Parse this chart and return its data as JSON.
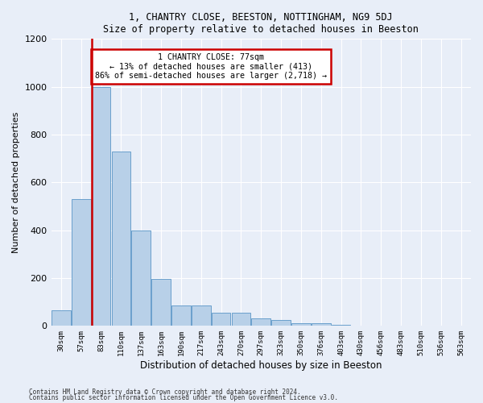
{
  "title1": "1, CHANTRY CLOSE, BEESTON, NOTTINGHAM, NG9 5DJ",
  "title2": "Size of property relative to detached houses in Beeston",
  "xlabel": "Distribution of detached houses by size in Beeston",
  "ylabel": "Number of detached properties",
  "bar_labels": [
    "30sqm",
    "57sqm",
    "83sqm",
    "110sqm",
    "137sqm",
    "163sqm",
    "190sqm",
    "217sqm",
    "243sqm",
    "270sqm",
    "297sqm",
    "323sqm",
    "350sqm",
    "376sqm",
    "403sqm",
    "430sqm",
    "456sqm",
    "483sqm",
    "510sqm",
    "536sqm",
    "563sqm"
  ],
  "bar_values": [
    65,
    530,
    1000,
    730,
    400,
    195,
    85,
    85,
    55,
    55,
    30,
    25,
    12,
    12,
    5,
    2,
    2,
    2,
    0,
    0,
    0
  ],
  "bar_color": "#b8d0e8",
  "bar_edge_color": "#6aa0cc",
  "vline_color": "#cc0000",
  "annotation_text": "1 CHANTRY CLOSE: 77sqm\n← 13% of detached houses are smaller (413)\n86% of semi-detached houses are larger (2,718) →",
  "annotation_box_color": "white",
  "annotation_box_edge": "#cc0000",
  "ylim": [
    0,
    1200
  ],
  "yticks": [
    0,
    200,
    400,
    600,
    800,
    1000,
    1200
  ],
  "footer1": "Contains HM Land Registry data © Crown copyright and database right 2024.",
  "footer2": "Contains public sector information licensed under the Open Government Licence v3.0.",
  "bg_color": "#e8eef8",
  "plot_bg_color": "#e8eef8"
}
